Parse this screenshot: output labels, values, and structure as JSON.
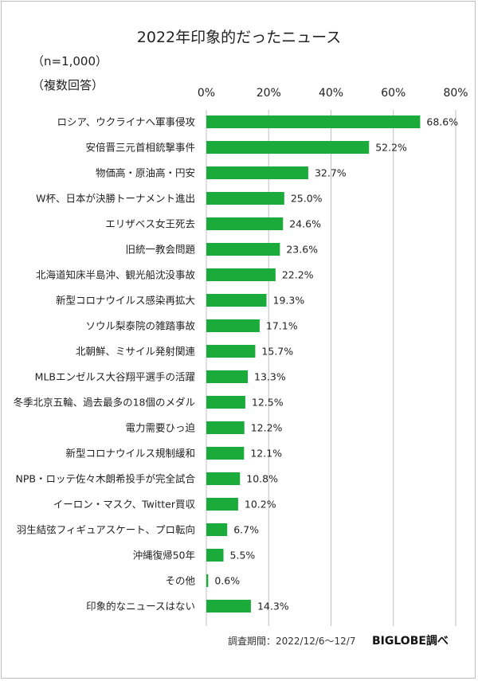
{
  "header": {
    "title": "2022年印象的だったニュース",
    "sample": "（n=1,000）",
    "answer_type": "（複数回答）"
  },
  "footer": {
    "survey_period": "調査期間：2022/12/6〜12/7",
    "brand": "BIGLOBE調べ"
  },
  "colors": {
    "bar": "#1aab3b",
    "grid": "#bfbfbf",
    "text": "#222222"
  },
  "chart_data": {
    "type": "bar",
    "orientation": "horizontal",
    "xlim": [
      0,
      80
    ],
    "ticks": [
      0,
      20,
      40,
      60,
      80
    ],
    "tick_suffix": "%",
    "grid": true,
    "categories": [
      "ロシア、ウクライナへ軍事侵攻",
      "安倍晋三元首相銃撃事件",
      "物価高・原油高・円安",
      "W杯、日本が決勝トーナメント進出",
      "エリザベス女王死去",
      "旧統一教会問題",
      "北海道知床半島沖、観光船沈没事故",
      "新型コロナウイルス感染再拡大",
      "ソウル梨泰院の雑踏事故",
      "北朝鮮、ミサイル発射関連",
      "MLBエンゼルス大谷翔平選手の活躍",
      "冬季北京五輪、過去最多の18個のメダル",
      "電力需要ひっ迫",
      "新型コロナウイルス規制緩和",
      "NPB・ロッテ佐々木朗希投手が完全試合",
      "イーロン・マスク、Twitter買収",
      "羽生結弦フィギュアスケート、プロ転向",
      "沖縄復帰50年",
      "その他",
      "印象的なニュースはない"
    ],
    "values": [
      68.6,
      52.2,
      32.7,
      25.0,
      24.6,
      23.6,
      22.2,
      19.3,
      17.1,
      15.7,
      13.3,
      12.5,
      12.2,
      12.1,
      10.8,
      10.2,
      6.7,
      5.5,
      0.6,
      14.3
    ],
    "value_labels": [
      "68.6%",
      "52.2%",
      "32.7%",
      "25.0%",
      "24.6%",
      "23.6%",
      "22.2%",
      "19.3%",
      "17.1%",
      "15.7%",
      "13.3%",
      "12.5%",
      "12.2%",
      "12.1%",
      "10.8%",
      "10.2%",
      "6.7%",
      "5.5%",
      "0.6%",
      "14.3%"
    ]
  }
}
